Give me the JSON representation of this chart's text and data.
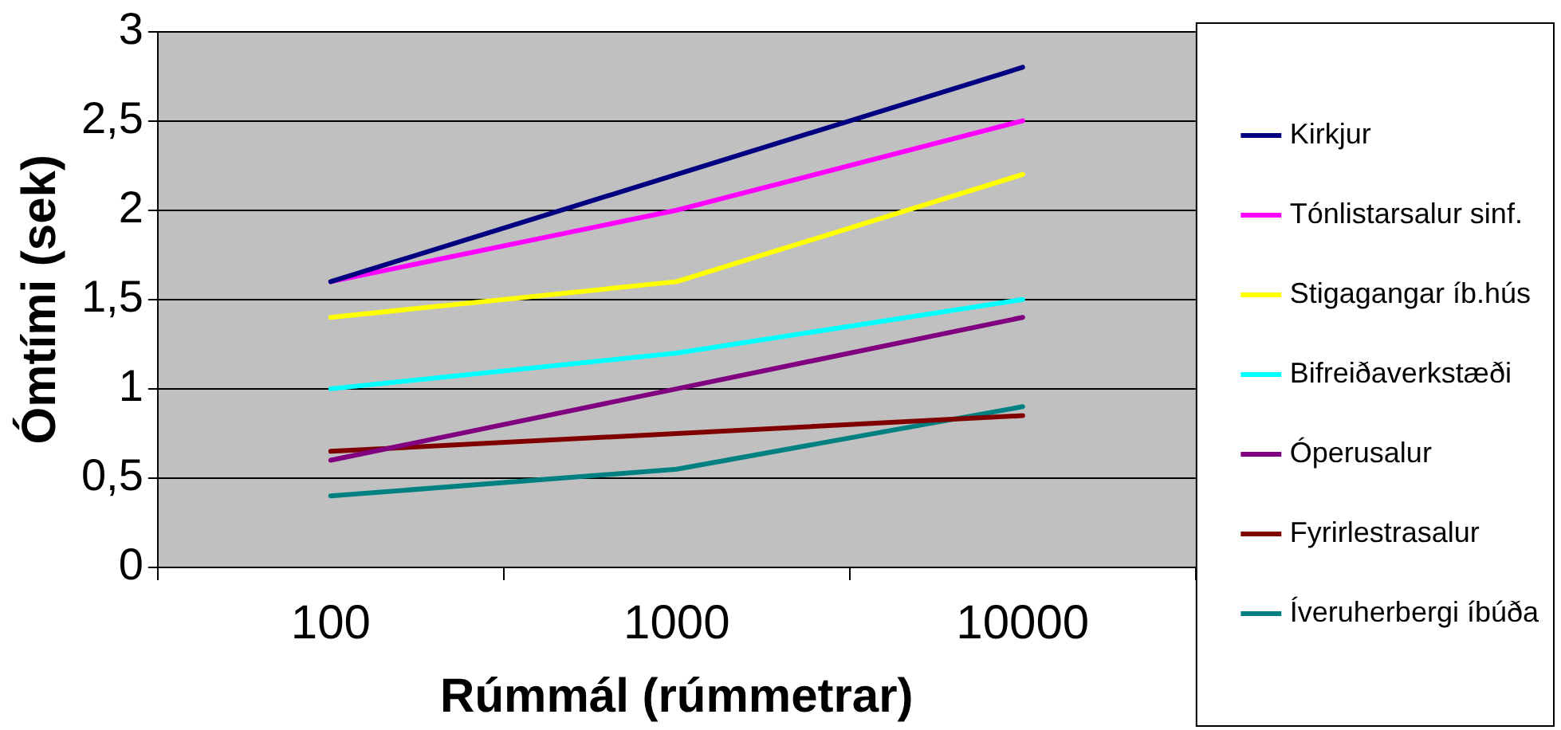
{
  "chart_data": {
    "type": "line",
    "xlabel": "Rúmmál (rúmmetrar)",
    "ylabel": "Ómtími (sek)",
    "categories": [
      "100",
      "1000",
      "10000"
    ],
    "series": [
      {
        "name": "Kirkjur",
        "color": "#000080",
        "values": [
          1.6,
          2.2,
          2.8
        ]
      },
      {
        "name": "Tónlistarsalur sinf.",
        "color": "#ff00ff",
        "values": [
          1.6,
          2.0,
          2.5
        ]
      },
      {
        "name": "Stigagangar íb.hús",
        "color": "#ffff00",
        "values": [
          1.4,
          1.6,
          2.2
        ]
      },
      {
        "name": "Bifreiðaverkstæði",
        "color": "#00ffff",
        "values": [
          1.0,
          1.2,
          1.5
        ]
      },
      {
        "name": "Óperusalur",
        "color": "#800080",
        "values": [
          0.6,
          1.0,
          1.4
        ]
      },
      {
        "name": "Fyrirlestrasalur",
        "color": "#800000",
        "values": [
          0.65,
          0.75,
          0.85
        ]
      },
      {
        "name": "Íveruherbergi íbúða",
        "color": "#008080",
        "values": [
          0.4,
          0.55,
          0.9
        ]
      }
    ],
    "ylim": [
      0,
      3
    ],
    "yticks": [
      0,
      {
        "value": 0.5,
        "label": "0,5"
      },
      1,
      {
        "value": 1.5,
        "label": "1,5"
      },
      2,
      {
        "value": 2.5,
        "label": "2,5"
      },
      3
    ],
    "grid": "y",
    "legend": "right",
    "marker": "none",
    "line_style": "solid"
  }
}
